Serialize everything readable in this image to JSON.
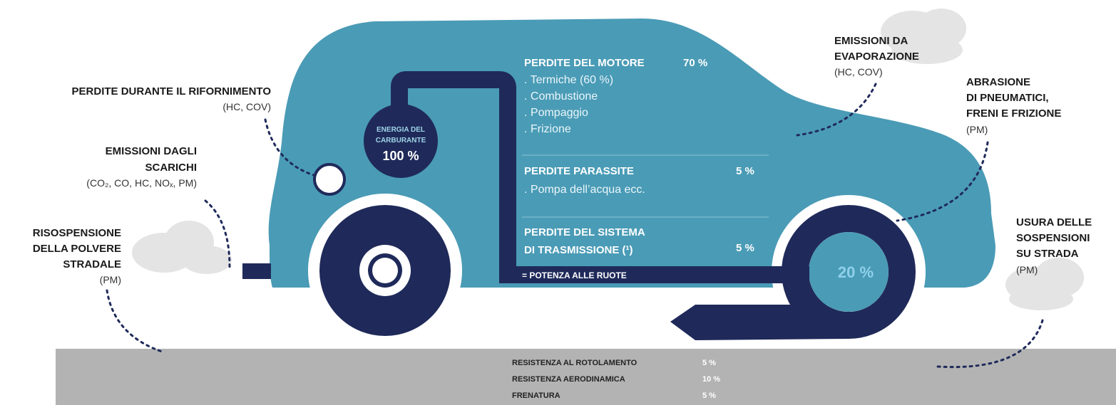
{
  "labels_left": [
    {
      "title": [
        "PERDITE DURANTE IL RIFORNIMENTO"
      ],
      "note": "(HC, COV)"
    },
    {
      "title": [
        "EMISSIONI DAGLI",
        "SCARICHI"
      ],
      "note": "(CO₂, CO, HC, NOₓ, PM)"
    },
    {
      "title": [
        "RISOSPENSIONE",
        "DELLA POLVERE",
        "STRADALE"
      ],
      "note": "(PM)"
    }
  ],
  "labels_right": [
    {
      "title": [
        "EMISSIONI DA",
        "EVAPORAZIONE"
      ],
      "note": "(HC, COV)"
    },
    {
      "title": [
        "ABRASIONE",
        "DI PNEUMATICI,",
        "FRENI E FRIZIONE"
      ],
      "note": "(PM)"
    },
    {
      "title": [
        "USURA DELLE",
        "SOSPENSIONI",
        "SU STRADA"
      ],
      "note": "(PM)"
    }
  ],
  "fuel": {
    "label": [
      "ENERGIA DEL",
      "CARBURANTE"
    ],
    "value": "100 %"
  },
  "losses": [
    {
      "title": [
        "PERDITE DEL MOTORE"
      ],
      "value": "70 %",
      "items": [
        ". Termiche (60 %)",
        ". Combustione",
        ". Pompaggio",
        ". Frizione"
      ]
    },
    {
      "title": [
        "PERDITE PARASSITE"
      ],
      "value": "5 %",
      "items": [
        ". Pompa dell’acqua ecc."
      ]
    },
    {
      "title": [
        "PERDITE DEL SISTEMA",
        "DI TRASMISSIONE (¹)"
      ],
      "value": "5 %"
    }
  ],
  "wheels": {
    "label": "= POTENZA ALLE RUOTE",
    "value": "20 %"
  },
  "road": [
    {
      "label": "RESISTENZA AL ROTOLAMENTO",
      "value": "5 %"
    },
    {
      "label": "RESISTENZA AERODINAMICA",
      "value": "10 %"
    },
    {
      "label": "FRENATURA",
      "value": "5 %"
    }
  ]
}
